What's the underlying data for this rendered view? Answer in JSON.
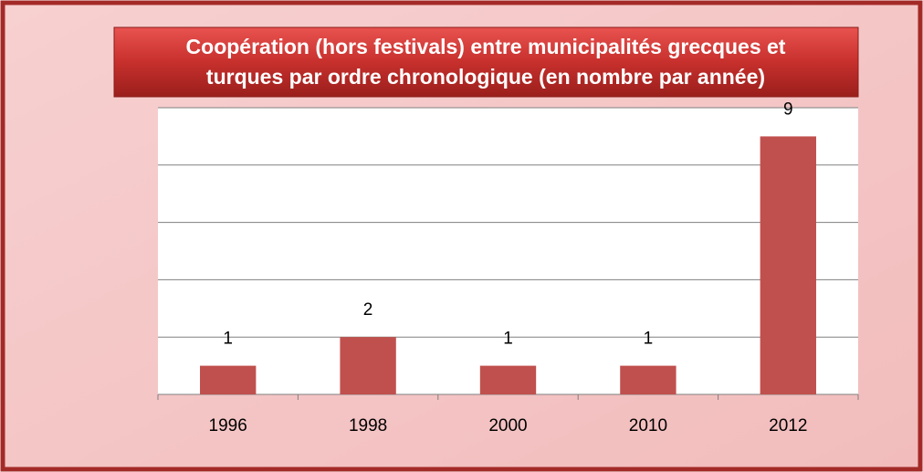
{
  "chart_data": {
    "type": "bar",
    "title": [
      "Coopération (hors festivals) entre municipalités grecques et",
      "turques par ordre chronologique (en nombre par année)"
    ],
    "categories": [
      "1996",
      "1998",
      "2000",
      "2010",
      "2012"
    ],
    "values": [
      1,
      2,
      1,
      1,
      9
    ],
    "color": "#c0504d",
    "ylim": [
      0,
      10
    ],
    "yticks": [
      0,
      2,
      4,
      6,
      8,
      10
    ],
    "grid": true
  }
}
